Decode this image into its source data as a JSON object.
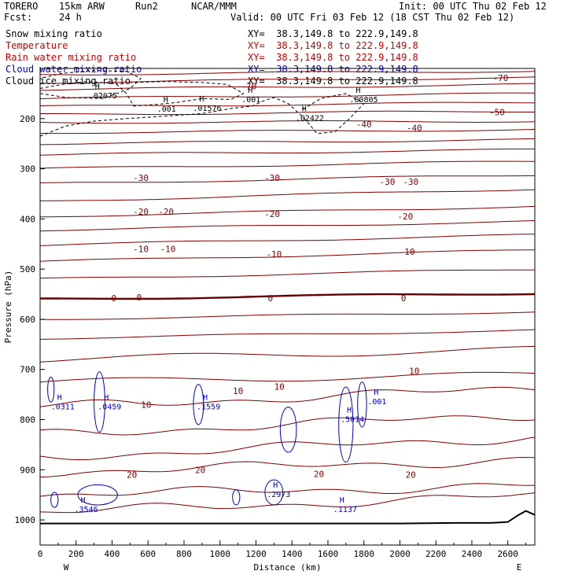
{
  "header": {
    "model": "TORERO",
    "resolution": "15km ARW",
    "run": "Run2",
    "org": "NCAR/MMM",
    "init": "Init: 00 UTC Thu 02 Feb 12",
    "fcst_label": "Fcst:",
    "fcst_hours": "24 h",
    "valid": "Valid: 00 UTC Fri 03 Feb 12 (18 CST Thu 02 Feb 12)"
  },
  "legend": [
    {
      "label": "Snow mixing ratio",
      "color": "#000000",
      "range": "XY=  38.3,149.8 to 222.9,149.8",
      "range_color": "#000000"
    },
    {
      "label": "Temperature",
      "color": "#cc0000",
      "range": "XY=  38.3,149.8 to 222.9,149.8",
      "range_color": "#cc0000"
    },
    {
      "label": "Rain water mixing ratio",
      "color": "#cc0000",
      "range": "XY=  38.3,149.8 to 222.9,149.8",
      "range_color": "#cc0000"
    },
    {
      "label": "Cloud water mixing ratio",
      "color": "#0000cc",
      "range": "XY=  38.3,149.8 to 222.9,149.8",
      "range_color": "#0000cc"
    },
    {
      "label": "Cloud ice mixing ratio",
      "color": "#000000",
      "range": "XY=  38.3,149.8 to 222.9,149.8",
      "range_color": "#000000"
    }
  ],
  "chart_data": {
    "type": "contour",
    "xlabel": "Distance (km)",
    "ylabel": "Pressure (hPa)",
    "xlim": [
      0,
      2750
    ],
    "ylim": [
      1050,
      100
    ],
    "x_ticks": [
      0,
      200,
      400,
      600,
      800,
      1000,
      1200,
      1400,
      1600,
      1800,
      2000,
      2200,
      2400,
      2600
    ],
    "y_ticks": [
      200,
      300,
      400,
      500,
      600,
      700,
      800,
      900,
      1000
    ],
    "x_end_labels": {
      "left": "W",
      "right": "E"
    },
    "temperature_color": "#800000",
    "freezing_color": "#660000",
    "cloud_color": "#0000cc",
    "terrain_color": "#000000",
    "temperature_labels": [
      {
        "x": 1160,
        "p": 135,
        "text": "-70"
      },
      {
        "x": 2560,
        "p": 119,
        "text": "-70"
      },
      {
        "x": 2540,
        "p": 187,
        "text": "-50"
      },
      {
        "x": 1800,
        "p": 211,
        "text": "-40"
      },
      {
        "x": 2080,
        "p": 218,
        "text": "-40"
      },
      {
        "x": 560,
        "p": 318,
        "text": "-30"
      },
      {
        "x": 1290,
        "p": 318,
        "text": "-30"
      },
      {
        "x": 1930,
        "p": 326,
        "text": "-30"
      },
      {
        "x": 2060,
        "p": 326,
        "text": "-30"
      },
      {
        "x": 560,
        "p": 385,
        "text": "-20"
      },
      {
        "x": 700,
        "p": 385,
        "text": "-20"
      },
      {
        "x": 1290,
        "p": 390,
        "text": "-20"
      },
      {
        "x": 2030,
        "p": 395,
        "text": "-20"
      },
      {
        "x": 560,
        "p": 460,
        "text": "-10"
      },
      {
        "x": 710,
        "p": 460,
        "text": "-10"
      },
      {
        "x": 1300,
        "p": 470,
        "text": "-10"
      },
      {
        "x": 2040,
        "p": 465,
        "text": "-10"
      },
      {
        "x": 410,
        "p": 558,
        "text": "0"
      },
      {
        "x": 550,
        "p": 556,
        "text": "0"
      },
      {
        "x": 1280,
        "p": 558,
        "text": "0"
      },
      {
        "x": 2020,
        "p": 558,
        "text": "0"
      },
      {
        "x": 1100,
        "p": 743,
        "text": "10"
      },
      {
        "x": 1330,
        "p": 734,
        "text": "10"
      },
      {
        "x": 590,
        "p": 770,
        "text": "10"
      },
      {
        "x": 2080,
        "p": 703,
        "text": "10"
      },
      {
        "x": 510,
        "p": 910,
        "text": "20"
      },
      {
        "x": 890,
        "p": 900,
        "text": "20"
      },
      {
        "x": 1550,
        "p": 908,
        "text": "20"
      },
      {
        "x": 2060,
        "p": 910,
        "text": "20"
      }
    ],
    "maxima_labels": [
      {
        "x": 270,
        "p": 150,
        "text": ".02075"
      },
      {
        "x": 850,
        "p": 175,
        "text": ".01576"
      },
      {
        "x": 1120,
        "p": 158,
        "text": ".001"
      },
      {
        "x": 650,
        "p": 177,
        "text": ".001"
      },
      {
        "x": 1420,
        "p": 195,
        "text": ".02422"
      },
      {
        "x": 1720,
        "p": 158,
        "text": ".00805"
      },
      {
        "x": 60,
        "p": 770,
        "text": ".0311"
      },
      {
        "x": 320,
        "p": 770,
        "text": ".0459"
      },
      {
        "x": 870,
        "p": 770,
        "text": ".1559"
      },
      {
        "x": 1670,
        "p": 795,
        "text": ".5014"
      },
      {
        "x": 1820,
        "p": 760,
        "text": ".001"
      },
      {
        "x": 190,
        "p": 975,
        "text": ".3546"
      },
      {
        "x": 1260,
        "p": 945,
        "text": ".2973"
      },
      {
        "x": 1630,
        "p": 975,
        "text": ".1137"
      }
    ],
    "h_marker": "H"
  }
}
